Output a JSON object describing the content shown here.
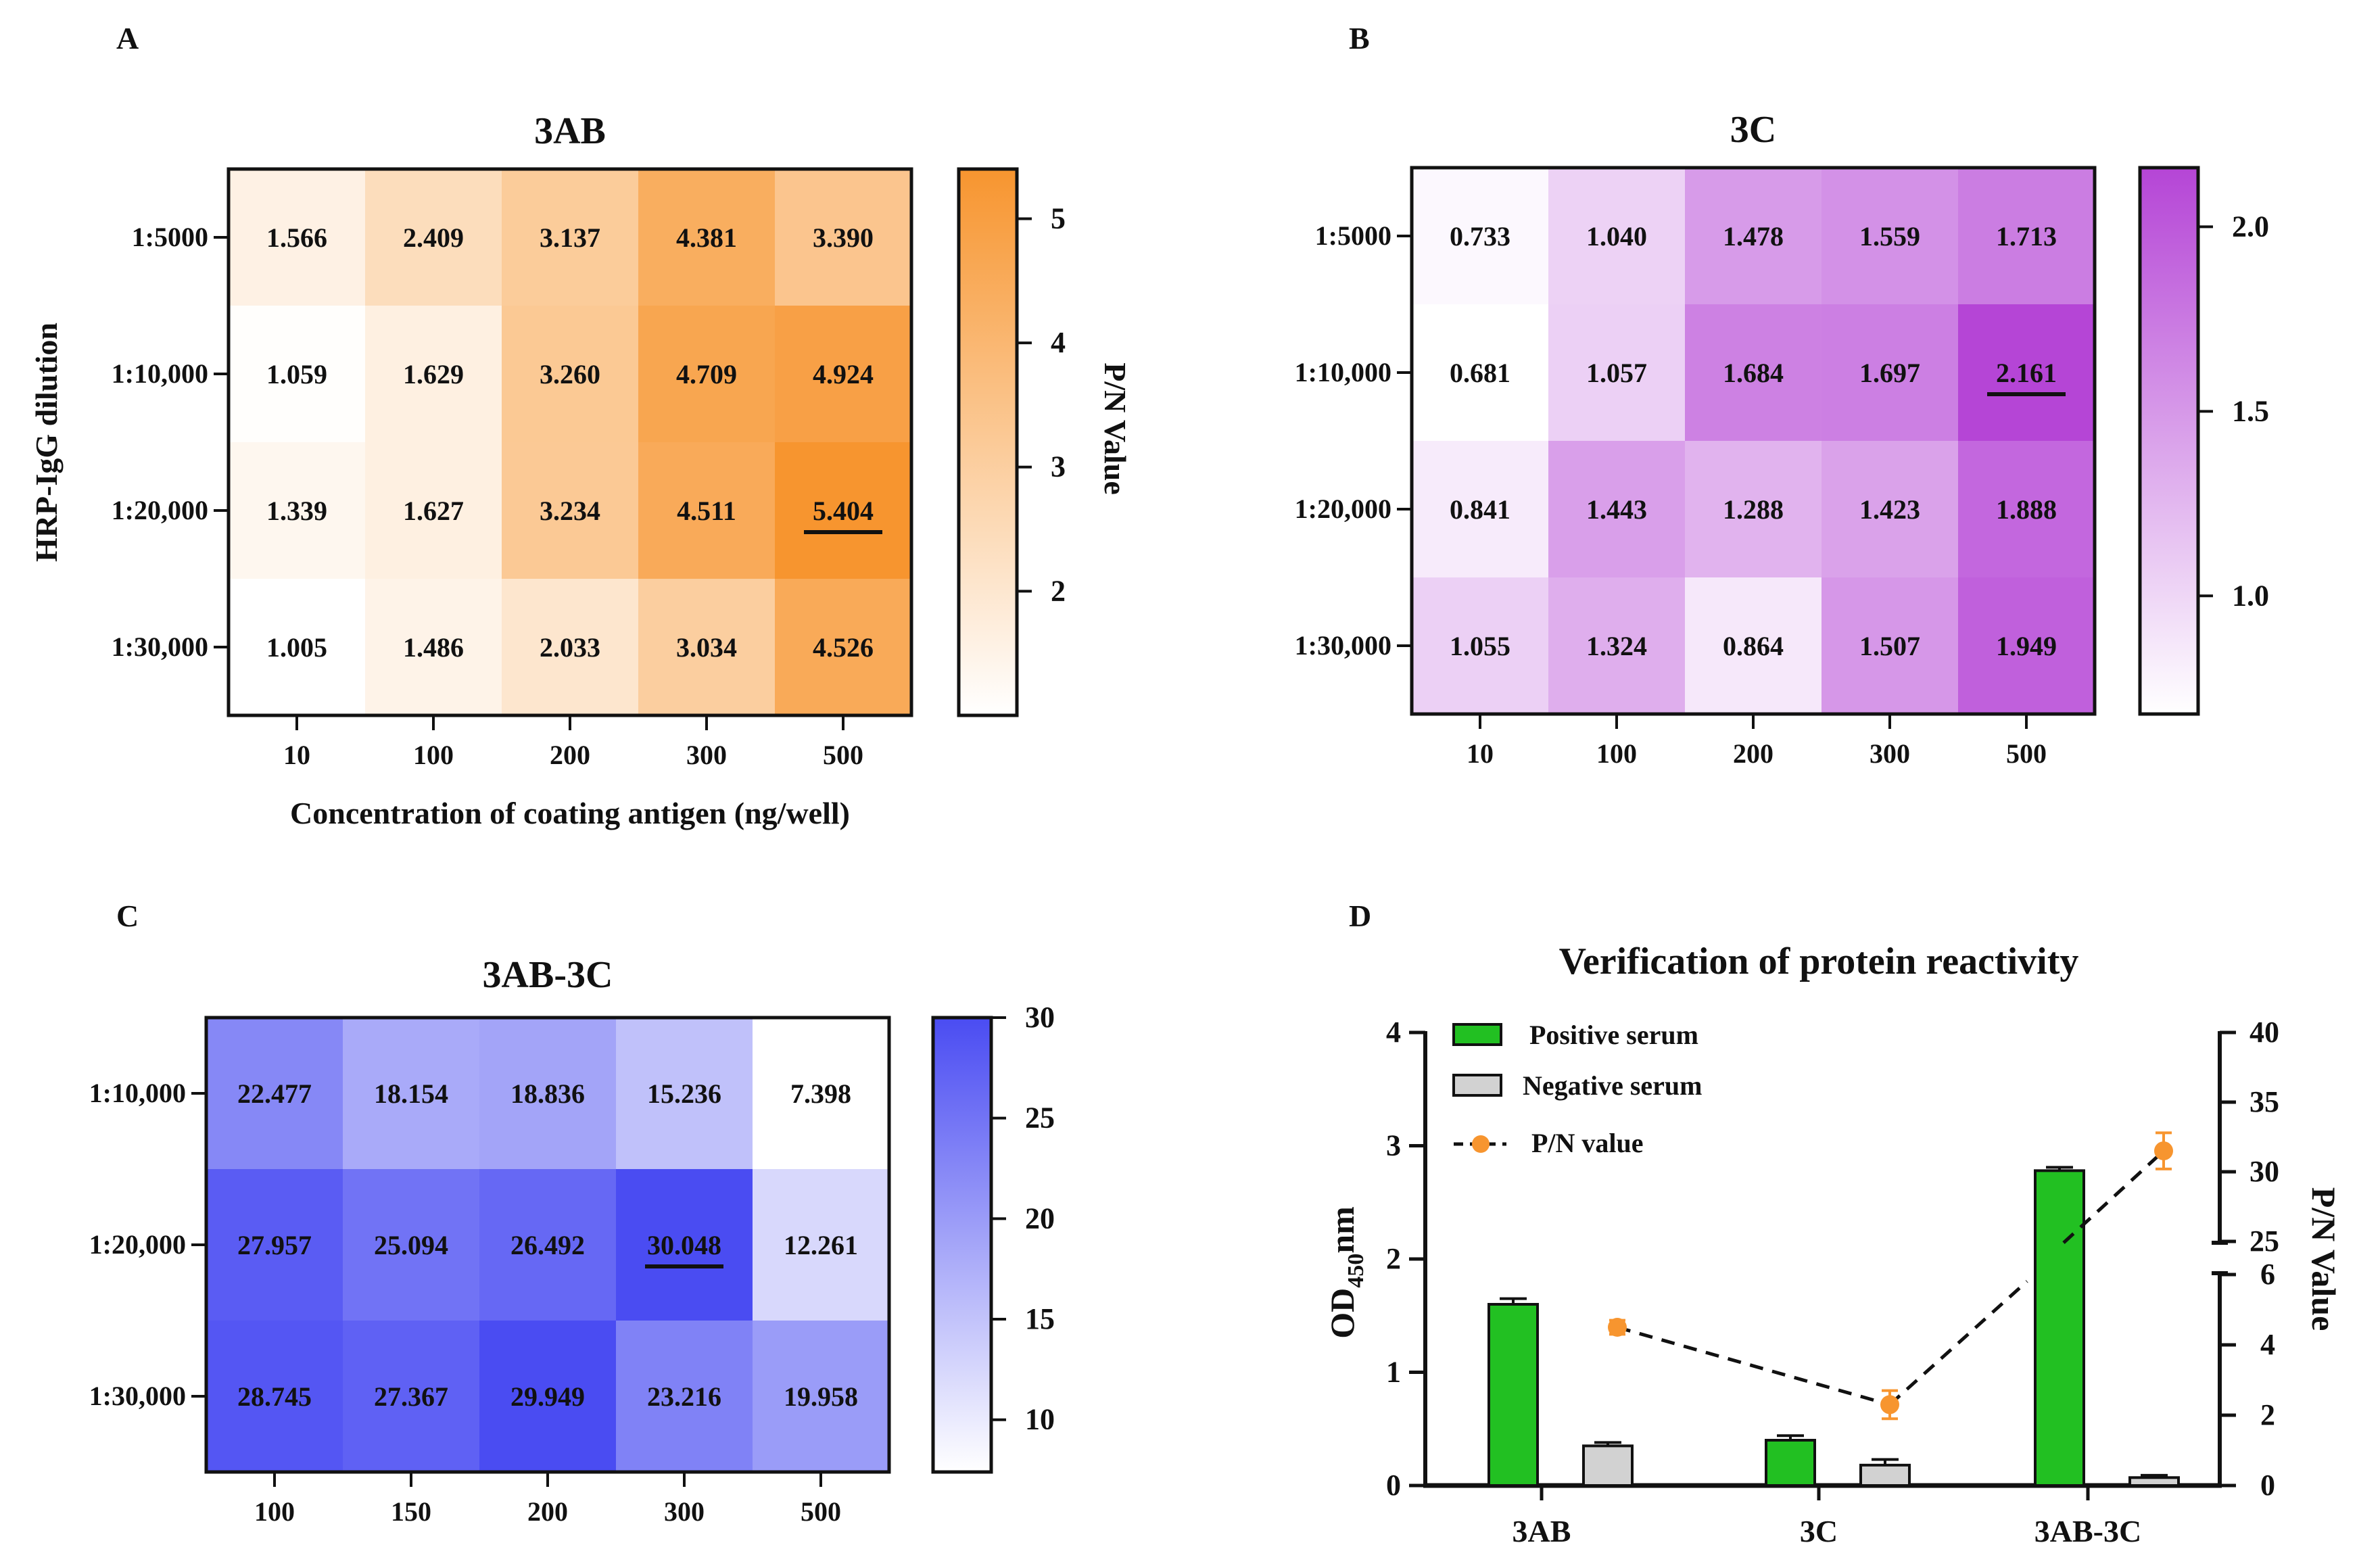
{
  "panels": {
    "A": "A",
    "B": "B",
    "C": "C",
    "D": "D"
  },
  "chart_data": [
    {
      "id": "A",
      "type": "heatmap",
      "title": "3AB",
      "xlabel": "Concentration of coating antigen (ng/well)",
      "ylabel": "HRP-IgG dilution",
      "colorbar_label": "P/N Value",
      "x_categories": [
        "10",
        "100",
        "200",
        "300",
        "500"
      ],
      "y_categories": [
        "1:5000",
        "1:10,000",
        "1:20,000",
        "1:30,000"
      ],
      "values": [
        [
          "1.566",
          "2.409",
          "3.137",
          "4.381",
          "3.390"
        ],
        [
          "1.059",
          "1.629",
          "3.260",
          "4.709",
          "4.924"
        ],
        [
          "1.339",
          "1.627",
          "3.234",
          "4.511",
          "5.404"
        ],
        [
          "1.005",
          "1.486",
          "2.033",
          "3.034",
          "4.526"
        ]
      ],
      "highlight": [
        2,
        4
      ],
      "color_low": "#ffffff",
      "color_high": "#f7952f",
      "vmin": 1.0,
      "vmax": 5.4,
      "colorbar_ticks": [
        "2",
        "3",
        "4",
        "5"
      ]
    },
    {
      "id": "B",
      "type": "heatmap",
      "title": "3C",
      "xlabel": "",
      "ylabel": "",
      "colorbar_label": "",
      "x_categories": [
        "10",
        "100",
        "200",
        "300",
        "500"
      ],
      "y_categories": [
        "1:5000",
        "1:10,000",
        "1:20,000",
        "1:30,000"
      ],
      "values": [
        [
          "0.733",
          "1.040",
          "1.478",
          "1.559",
          "1.713"
        ],
        [
          "0.681",
          "1.057",
          "1.684",
          "1.697",
          "2.161"
        ],
        [
          "0.841",
          "1.443",
          "1.288",
          "1.423",
          "1.888"
        ],
        [
          "1.055",
          "1.324",
          "0.864",
          "1.507",
          "1.949"
        ]
      ],
      "highlight": [
        1,
        4
      ],
      "color_low": "#ffffff",
      "color_high": "#b545d6",
      "vmin": 0.68,
      "vmax": 2.16,
      "colorbar_ticks": [
        "1.0",
        "1.5",
        "2.0"
      ]
    },
    {
      "id": "C",
      "type": "heatmap",
      "title": "3AB-3C",
      "xlabel": "",
      "ylabel": "",
      "colorbar_label": "",
      "x_categories": [
        "100",
        "150",
        "200",
        "300",
        "500"
      ],
      "y_categories": [
        "1:10,000",
        "1:20,000",
        "1:30,000"
      ],
      "values": [
        [
          "22.477",
          "18.154",
          "18.836",
          "15.236",
          "7.398"
        ],
        [
          "27.957",
          "25.094",
          "26.492",
          "30.048",
          "12.261"
        ],
        [
          "28.745",
          "27.367",
          "29.949",
          "23.216",
          "19.958"
        ]
      ],
      "highlight": [
        1,
        3
      ],
      "color_low": "#ffffff",
      "color_high": "#4a4cf2",
      "vmin": 7.4,
      "vmax": 30.0,
      "colorbar_ticks": [
        "10",
        "15",
        "20",
        "25",
        "30"
      ]
    },
    {
      "id": "D",
      "type": "bar",
      "title": "Verification of protein reactivity",
      "categories": [
        "3AB",
        "3C",
        "3AB-3C"
      ],
      "ylabel_main": "OD",
      "ylabel_sub": "450",
      "ylabel_suffix": "nm",
      "ylabel_right": "P/N Value",
      "ylim": [
        0,
        4
      ],
      "left_ticks": [
        "0",
        "1",
        "2",
        "3",
        "4"
      ],
      "right_lower_ticks": [
        "0",
        "2",
        "4",
        "6"
      ],
      "right_upper_ticks": [
        "25",
        "30",
        "35",
        "40"
      ],
      "series": [
        {
          "name": "Positive serum",
          "color": "#22c022",
          "values": [
            1.6,
            0.4,
            2.78
          ],
          "errors": [
            0.05,
            0.04,
            0.03
          ]
        },
        {
          "name": "Negative serum",
          "color": "#d2d2d2",
          "values": [
            0.35,
            0.18,
            0.07
          ],
          "errors": [
            0.03,
            0.05,
            0.02
          ]
        }
      ],
      "pn": {
        "name": "P/N value",
        "color": "#f7952f",
        "values": [
          4.5,
          2.3,
          31.5
        ],
        "errors": [
          0.2,
          0.4,
          1.3
        ]
      }
    }
  ]
}
